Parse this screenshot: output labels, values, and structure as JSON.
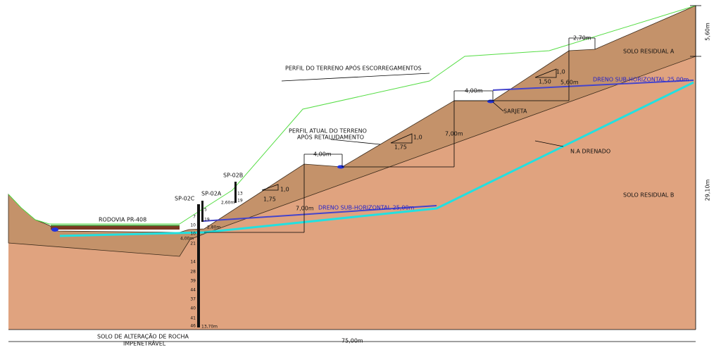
{
  "profile_labels": {
    "after_landslides": "PERFIL DO TERRENO APÓS ESCORREGAMENTOS",
    "current_line1": "PERFIL ATUAL DO TERRENO",
    "current_line2": "APÓS RETALUDAMENTO"
  },
  "soils": {
    "a": "SOLO RESIDUAL A",
    "b": "SOLO RESIDUAL B",
    "rock_line1": "SOLO DE ALTERAÇÃO DE ROCHA",
    "rock_line2": "IMPENETRÁVEL"
  },
  "road": "RODOVIA PR-408",
  "drains": {
    "lower": "DRENO SUB-HORIZONTAL 25,00m",
    "upper": "DRENO SUB-HORIZONTAL 25,00m"
  },
  "gutter": "SARJETA",
  "water_table": "N.A DRENADO",
  "dimensions": {
    "total_width": "75,00m",
    "total_height": "29,10m",
    "top_layer": "5,60m",
    "top_berm": "2,70m",
    "upper_berm": "4,00m",
    "lower_berm": "4,00m",
    "upper_height": "7,00m",
    "lower_height": "7,00m",
    "top_height": "5,60m",
    "road_offset": "4,00m",
    "sp02a_depth": "2,80m",
    "sp02b_depth": "2,60m",
    "sp02c_depth": "13,70m"
  },
  "slopes": [
    {
      "v": "1,0",
      "h": "1,50"
    },
    {
      "v": "1,0",
      "h": "1,75"
    },
    {
      "v": "1,0",
      "h": "1,75"
    }
  ],
  "boreholes": {
    "sp02c": {
      "name": "SP-02C",
      "spt": [
        "7",
        "10",
        "10",
        "21",
        "14",
        "28",
        "39",
        "44",
        "37",
        "40",
        "41",
        "46"
      ]
    },
    "sp02a": {
      "name": "SP-02A",
      "spt": [
        "5",
        "19"
      ]
    },
    "sp02b": {
      "name": "SP-02B",
      "spt": [
        "13",
        "19"
      ]
    }
  }
}
